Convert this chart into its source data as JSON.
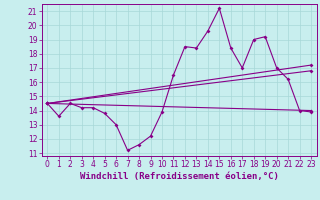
{
  "title": "",
  "xlabel": "Windchill (Refroidissement éolien,°C)",
  "ylabel": "",
  "bg_color": "#c8eeee",
  "grid_color": "#a8d8d8",
  "line_color": "#880088",
  "x_ticks": [
    0,
    1,
    2,
    3,
    4,
    5,
    6,
    7,
    8,
    9,
    10,
    11,
    12,
    13,
    14,
    15,
    16,
    17,
    18,
    19,
    20,
    21,
    22,
    23
  ],
  "y_ticks": [
    11,
    12,
    13,
    14,
    15,
    16,
    17,
    18,
    19,
    20,
    21
  ],
  "ylim": [
    10.8,
    21.5
  ],
  "xlim": [
    -0.5,
    23.5
  ],
  "curve1_x": [
    0,
    1,
    2,
    3,
    4,
    5,
    6,
    7,
    8,
    9,
    10,
    11,
    12,
    13,
    14,
    15,
    16,
    17,
    18,
    19,
    20,
    21,
    22,
    23
  ],
  "curve1_y": [
    14.5,
    13.6,
    14.5,
    14.2,
    14.2,
    13.8,
    13.0,
    11.2,
    11.6,
    12.2,
    13.9,
    16.5,
    18.5,
    18.4,
    19.6,
    21.2,
    18.4,
    17.0,
    19.0,
    19.2,
    17.0,
    16.2,
    14.0,
    13.9
  ],
  "curve2_x": [
    0,
    23
  ],
  "curve2_y": [
    14.5,
    14.0
  ],
  "curve3_x": [
    0,
    23
  ],
  "curve3_y": [
    14.5,
    16.8
  ],
  "curve4_x": [
    0,
    23
  ],
  "curve4_y": [
    14.5,
    17.2
  ],
  "tick_fontsize": 5.5,
  "label_fontsize": 6.5
}
